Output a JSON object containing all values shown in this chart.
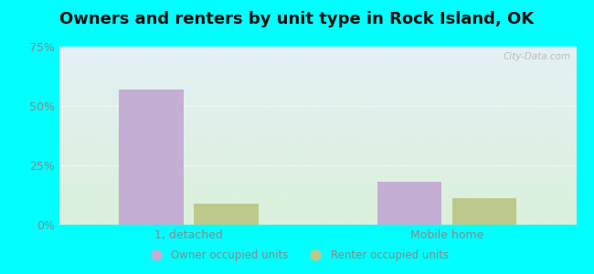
{
  "title": "Owners and renters by unit type in Rock Island, OK",
  "categories": [
    "1, detached",
    "Mobile home"
  ],
  "owner_values": [
    57,
    18
  ],
  "renter_values": [
    9,
    11
  ],
  "owner_color": "#c4aed4",
  "renter_color": "#bdc98a",
  "ylim": [
    0,
    75
  ],
  "yticks": [
    0,
    25,
    50,
    75
  ],
  "ytick_labels": [
    "0%",
    "25%",
    "50%",
    "75%"
  ],
  "bar_width": 0.25,
  "background_top": "#e4f0f5",
  "background_bottom": "#daf0da",
  "outer_bg": "#00ffff",
  "title_fontsize": 13,
  "legend_owner": "Owner occupied units",
  "legend_renter": "Renter occupied units",
  "watermark": "City-Data.com",
  "grid_color": "#ccddcc",
  "tick_color": "#888888",
  "x_positions": [
    0,
    1
  ]
}
